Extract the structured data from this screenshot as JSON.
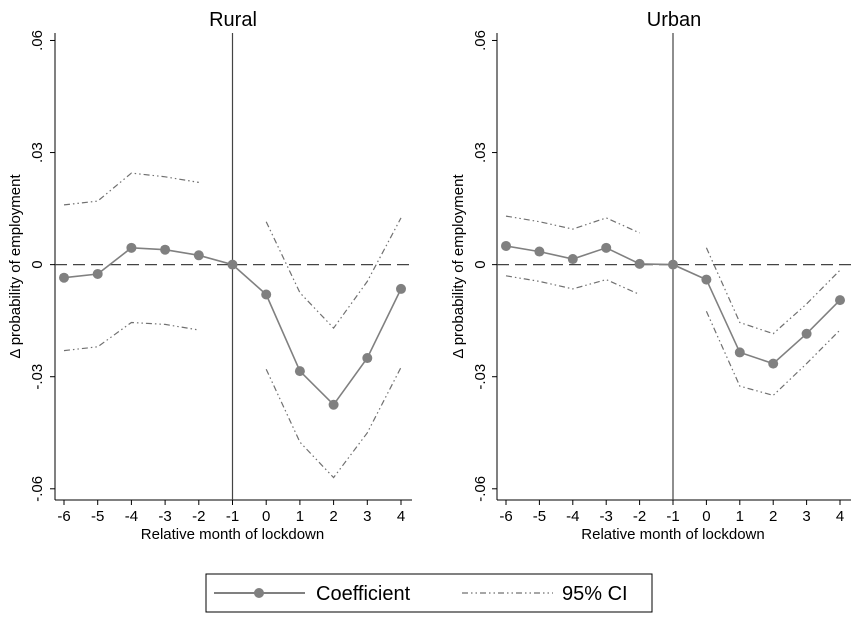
{
  "chart_data": [
    {
      "type": "line",
      "title": "Rural",
      "xlabel": "Relative month of lockdown",
      "ylabel": "Δ probability of employment",
      "x": [
        -6,
        -5,
        -4,
        -3,
        -2,
        -1,
        0,
        1,
        2,
        3,
        4
      ],
      "x_tick_labels": [
        "-6",
        "-5",
        "-4",
        "-3",
        "-2",
        "-1",
        "0",
        "1",
        "2",
        "3",
        "4"
      ],
      "y_ticks": [
        -0.06,
        -0.03,
        0,
        0.03,
        0.06
      ],
      "y_tick_labels": [
        "-.06",
        "-.03",
        "0",
        ".03",
        ".06"
      ],
      "ylim": [
        -0.063,
        0.062
      ],
      "reference_lines": {
        "x": -1,
        "y": 0
      },
      "series": [
        {
          "name": "Coefficient",
          "style": "solid-markers",
          "values": [
            -0.0035,
            -0.0025,
            0.0045,
            0.004,
            0.0025,
            0.0,
            -0.008,
            -0.0285,
            -0.0375,
            -0.025,
            -0.0065
          ]
        },
        {
          "name": "95% CI",
          "style": "dash-dot",
          "segments": [
            {
              "x": [
                -6,
                -5,
                -4,
                -3,
                -2
              ],
              "values": [
                0.016,
                0.017,
                0.0245,
                0.0235,
                0.022
              ]
            },
            {
              "x": [
                0,
                1,
                2,
                3,
                4
              ],
              "values": [
                0.0115,
                -0.0075,
                -0.017,
                -0.0045,
                0.0125
              ]
            }
          ]
        },
        {
          "name": "95% CI",
          "style": "dash-dot",
          "segments": [
            {
              "x": [
                -6,
                -5,
                -4,
                -3,
                -2
              ],
              "values": [
                -0.023,
                -0.022,
                -0.0155,
                -0.016,
                -0.0175
              ]
            },
            {
              "x": [
                0,
                1,
                2,
                3,
                4
              ],
              "values": [
                -0.028,
                -0.0475,
                -0.057,
                -0.045,
                -0.0275
              ]
            }
          ]
        }
      ]
    },
    {
      "type": "line",
      "title": "Urban",
      "xlabel": "Relative month of lockdown",
      "ylabel": "Δ probability of employment",
      "x": [
        -6,
        -5,
        -4,
        -3,
        -2,
        -1,
        0,
        1,
        2,
        3,
        4
      ],
      "x_tick_labels": [
        "-6",
        "-5",
        "-4",
        "-3",
        "-2",
        "-1",
        "0",
        "1",
        "2",
        "3",
        "4"
      ],
      "y_ticks": [
        -0.06,
        -0.03,
        0,
        0.03,
        0.06
      ],
      "y_tick_labels": [
        "-.06",
        "-.03",
        "0",
        ".03",
        ".06"
      ],
      "ylim": [
        -0.063,
        0.062
      ],
      "reference_lines": {
        "x": -1,
        "y": 0
      },
      "series": [
        {
          "name": "Coefficient",
          "style": "solid-markers",
          "values": [
            0.005,
            0.0035,
            0.0015,
            0.0045,
            0.0002,
            0.0,
            -0.004,
            -0.0235,
            -0.0265,
            -0.0185,
            -0.0095
          ]
        },
        {
          "name": "95% CI",
          "style": "dash-dot",
          "segments": [
            {
              "x": [
                -6,
                -5,
                -4,
                -3,
                -2
              ],
              "values": [
                0.013,
                0.0115,
                0.0095,
                0.0125,
                0.0085
              ]
            },
            {
              "x": [
                0,
                1,
                2,
                3,
                4
              ],
              "values": [
                0.0045,
                -0.0155,
                -0.0185,
                -0.0105,
                -0.0015
              ]
            }
          ]
        },
        {
          "name": "95% CI",
          "style": "dash-dot",
          "segments": [
            {
              "x": [
                -6,
                -5,
                -4,
                -3,
                -2
              ],
              "values": [
                -0.003,
                -0.0045,
                -0.0065,
                -0.004,
                -0.008
              ]
            },
            {
              "x": [
                0,
                1,
                2,
                3,
                4
              ],
              "values": [
                -0.0125,
                -0.0325,
                -0.035,
                -0.0265,
                -0.0175
              ]
            }
          ]
        }
      ]
    }
  ],
  "legend": {
    "items": [
      {
        "label": "Coefficient"
      },
      {
        "label": "95% CI"
      }
    ]
  },
  "colors": {
    "coefficient": "#808080",
    "ci": "#707070",
    "axis": "#000000",
    "reference": "#444444"
  }
}
